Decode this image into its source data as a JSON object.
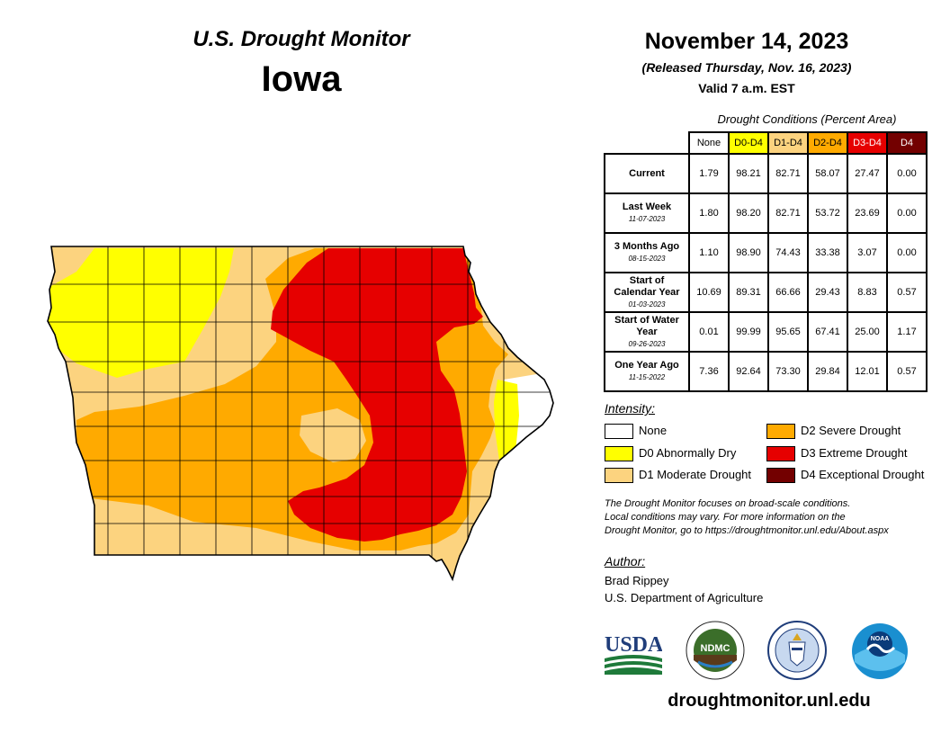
{
  "header": {
    "program": "U.S. Drought Monitor",
    "state": "Iowa",
    "date": "November 14, 2023",
    "released": "(Released Thursday, Nov. 16, 2023)",
    "valid": "Valid 7 a.m. EST"
  },
  "table": {
    "title": "Drought Conditions (Percent Area)",
    "columns": [
      {
        "label": "None",
        "color": "#ffffff",
        "text_color": "#000000"
      },
      {
        "label": "D0-D4",
        "color": "#ffff00",
        "text_color": "#000000"
      },
      {
        "label": "D1-D4",
        "color": "#fcd37f",
        "text_color": "#000000"
      },
      {
        "label": "D2-D4",
        "color": "#ffaa00",
        "text_color": "#000000"
      },
      {
        "label": "D3-D4",
        "color": "#e60000",
        "text_color": "#ffffff"
      },
      {
        "label": "D4",
        "color": "#730000",
        "text_color": "#ffffff"
      }
    ],
    "rows": [
      {
        "label": "Current",
        "date": "",
        "values": [
          "1.79",
          "98.21",
          "82.71",
          "58.07",
          "27.47",
          "0.00"
        ]
      },
      {
        "label": "Last Week",
        "date": "11-07-2023",
        "values": [
          "1.80",
          "98.20",
          "82.71",
          "53.72",
          "23.69",
          "0.00"
        ]
      },
      {
        "label": "3 Months Ago",
        "date": "08-15-2023",
        "values": [
          "1.10",
          "98.90",
          "74.43",
          "33.38",
          "3.07",
          "0.00"
        ]
      },
      {
        "label": "Start of Calendar Year",
        "date": "01-03-2023",
        "values": [
          "10.69",
          "89.31",
          "66.66",
          "29.43",
          "8.83",
          "0.57"
        ]
      },
      {
        "label": "Start of Water Year",
        "date": "09-26-2023",
        "values": [
          "0.01",
          "99.99",
          "95.65",
          "67.41",
          "25.00",
          "1.17"
        ]
      },
      {
        "label": "One Year Ago",
        "date": "11-15-2022",
        "values": [
          "7.36",
          "92.64",
          "73.30",
          "29.84",
          "12.01",
          "0.57"
        ]
      }
    ]
  },
  "legend": {
    "title": "Intensity:",
    "items": [
      {
        "label": "None",
        "color": "#ffffff"
      },
      {
        "label": "D0 Abnormally Dry",
        "color": "#ffff00"
      },
      {
        "label": "D1 Moderate Drought",
        "color": "#fcd37f"
      },
      {
        "label": "D2 Severe Drought",
        "color": "#ffaa00"
      },
      {
        "label": "D3 Extreme Drought",
        "color": "#e60000"
      },
      {
        "label": "D4 Exceptional Drought",
        "color": "#730000"
      }
    ]
  },
  "note": {
    "line1": "The Drought Monitor focuses on broad-scale conditions.",
    "line2": "Local conditions may vary. For more information on the",
    "line3": "Drought Monitor, go to https://droughtmonitor.unl.edu/About.aspx"
  },
  "author": {
    "title": "Author:",
    "name": "Brad Rippey",
    "org": "U.S. Department of Agriculture"
  },
  "logos": {
    "usda": "USDA",
    "ndmc": "NDMC",
    "noaa": "NOAA"
  },
  "website": "droughtmonitor.unl.edu"
}
